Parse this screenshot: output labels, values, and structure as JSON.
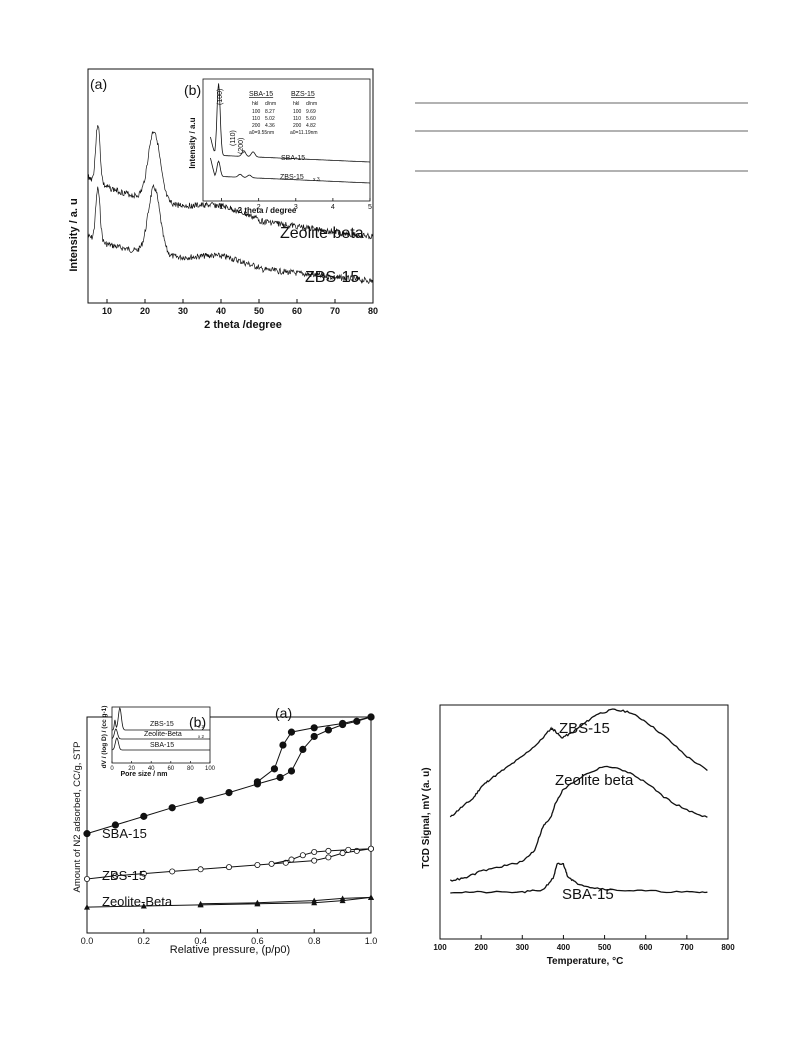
{
  "chart_data": [
    {
      "type": "line",
      "panel_label": "(a)",
      "xlabel": "2 theta /degree",
      "ylabel": "Intensity / a. u",
      "xlim": [
        5,
        80
      ],
      "xticks": [
        "10",
        "20",
        "30",
        "40",
        "50",
        "60",
        "70",
        "80"
      ],
      "series": [
        {
          "name": "Zeolite beta",
          "peaks": [
            {
              "x": 7.6,
              "height": 0.85
            },
            {
              "x": 22.4,
              "height": 1.0
            }
          ]
        },
        {
          "name": "ZBS-15",
          "peaks": [
            {
              "x": 7.6,
              "height": 0.75
            },
            {
              "x": 22.4,
              "height": 0.95
            }
          ]
        }
      ]
    },
    {
      "type": "line",
      "panel_label": "(b)",
      "xlabel": "2 theta / degree",
      "ylabel": "Intensity / a.u",
      "xlim": [
        0.5,
        5
      ],
      "xticks": [
        "1",
        "2",
        "3",
        "4",
        "5"
      ],
      "peak_labels": [
        "(100)",
        "(110)",
        "(200)"
      ],
      "series": [
        {
          "name": "SBA-15",
          "peaks": [
            {
              "x": 0.92,
              "height": 1.0
            },
            {
              "x": 1.6,
              "height": 0.08
            },
            {
              "x": 1.85,
              "height": 0.07
            }
          ]
        },
        {
          "name": "ZBS-15",
          "multiplier": "x 3",
          "peaks": [
            {
              "x": 0.92,
              "height": 0.4
            },
            {
              "x": 1.5,
              "height": 0.08
            },
            {
              "x": 1.75,
              "height": 0.07
            }
          ]
        }
      ],
      "table": {
        "columns": [
          {
            "title": "SBA-15",
            "header": [
              "hkl",
              "d/nm"
            ],
            "rows": [
              [
                "100",
                "8.27"
              ],
              [
                "110",
                "5.02"
              ],
              [
                "200",
                "4.36"
              ]
            ],
            "a0": "a0=9.55nm"
          },
          {
            "title": "BZS-15",
            "header": [
              "hkl",
              "d/nm"
            ],
            "rows": [
              [
                "100",
                "9.69"
              ],
              [
                "110",
                "5.60"
              ],
              [
                "200",
                "4.82"
              ]
            ],
            "a0": "a0=11.19nm"
          }
        ]
      }
    },
    {
      "type": "scatter",
      "panel_label": "(a)",
      "xlabel": "Relative pressure, (p/p0)",
      "ylabel": "Amount of N2 adsorbed, CC/g, STP",
      "xlim": [
        0.0,
        1.0
      ],
      "xticks": [
        "0.0",
        "0.2",
        "0.4",
        "0.6",
        "0.8",
        "1.0"
      ],
      "series": [
        {
          "name": "SBA-15",
          "marker": "filled-circle",
          "adsorption": [
            [
              0.0,
              0.46
            ],
            [
              0.1,
              0.5
            ],
            [
              0.2,
              0.54
            ],
            [
              0.3,
              0.58
            ],
            [
              0.4,
              0.615
            ],
            [
              0.5,
              0.65
            ],
            [
              0.6,
              0.69
            ],
            [
              0.68,
              0.72
            ],
            [
              0.72,
              0.75
            ],
            [
              0.76,
              0.85
            ],
            [
              0.8,
              0.91
            ],
            [
              0.85,
              0.94
            ],
            [
              0.9,
              0.965
            ],
            [
              0.95,
              0.98
            ],
            [
              1.0,
              1.0
            ]
          ],
          "desorption": [
            [
              1.0,
              1.0
            ],
            [
              0.9,
              0.97
            ],
            [
              0.8,
              0.95
            ],
            [
              0.72,
              0.93
            ],
            [
              0.69,
              0.87
            ],
            [
              0.66,
              0.76
            ],
            [
              0.6,
              0.7
            ]
          ]
        },
        {
          "name": "ZBS-15",
          "marker": "open-circle",
          "adsorption": [
            [
              0.0,
              0.25
            ],
            [
              0.1,
              0.265
            ],
            [
              0.2,
              0.275
            ],
            [
              0.3,
              0.285
            ],
            [
              0.4,
              0.295
            ],
            [
              0.5,
              0.305
            ],
            [
              0.6,
              0.315
            ],
            [
              0.7,
              0.325
            ],
            [
              0.8,
              0.335
            ],
            [
              0.85,
              0.35
            ],
            [
              0.9,
              0.37
            ],
            [
              0.95,
              0.38
            ],
            [
              1.0,
              0.39
            ]
          ],
          "desorption": [
            [
              1.0,
              0.39
            ],
            [
              0.92,
              0.385
            ],
            [
              0.85,
              0.38
            ],
            [
              0.8,
              0.375
            ],
            [
              0.76,
              0.36
            ],
            [
              0.72,
              0.34
            ],
            [
              0.65,
              0.32
            ]
          ]
        },
        {
          "name": "Zeolite-Beta",
          "marker": "filled-triangle",
          "adsorption": [
            [
              0.0,
              0.12
            ],
            [
              0.2,
              0.125
            ],
            [
              0.4,
              0.13
            ],
            [
              0.6,
              0.135
            ],
            [
              0.8,
              0.14
            ],
            [
              0.9,
              0.15
            ],
            [
              1.0,
              0.165
            ]
          ],
          "desorption": [
            [
              1.0,
              0.165
            ],
            [
              0.9,
              0.16
            ],
            [
              0.8,
              0.15
            ],
            [
              0.6,
              0.14
            ],
            [
              0.4,
              0.135
            ]
          ]
        }
      ]
    },
    {
      "type": "line",
      "panel_label": "(b)",
      "xlabel": "Pore size / nm",
      "ylabel": "dV / (log D) / (cc g-1)",
      "xlim": [
        0,
        100
      ],
      "xticks": [
        "0",
        "20",
        "40",
        "60",
        "80",
        "100"
      ],
      "series": [
        {
          "name": "ZBS-15",
          "multiplier": "x 2"
        },
        {
          "name": "Zeolite-Beta",
          "multiplier": "x 2"
        },
        {
          "name": "SBA-15"
        }
      ]
    },
    {
      "type": "line",
      "xlabel": "Temperature, °C",
      "ylabel": "TCD Signal, mV (a. u)",
      "xlim": [
        100,
        800
      ],
      "xticks": [
        "100",
        "200",
        "300",
        "400",
        "500",
        "600",
        "700",
        "800"
      ],
      "series": [
        {
          "name": "ZBS-15",
          "points": [
            [
              125,
              0.52
            ],
            [
              150,
              0.56
            ],
            [
              180,
              0.6
            ],
            [
              200,
              0.65
            ],
            [
              220,
              0.68
            ],
            [
              260,
              0.73
            ],
            [
              300,
              0.78
            ],
            [
              340,
              0.84
            ],
            [
              370,
              0.9
            ],
            [
              380,
              0.89
            ],
            [
              395,
              0.86
            ],
            [
              420,
              0.88
            ],
            [
              450,
              0.92
            ],
            [
              480,
              0.96
            ],
            [
              520,
              0.98
            ],
            [
              560,
              0.97
            ],
            [
              600,
              0.93
            ],
            [
              650,
              0.86
            ],
            [
              700,
              0.78
            ],
            [
              750,
              0.72
            ]
          ]
        },
        {
          "name": "Zeolite beta",
          "points": [
            [
              125,
              0.25
            ],
            [
              160,
              0.26
            ],
            [
              200,
              0.29
            ],
            [
              250,
              0.31
            ],
            [
              300,
              0.33
            ],
            [
              330,
              0.38
            ],
            [
              350,
              0.48
            ],
            [
              370,
              0.52
            ],
            [
              380,
              0.58
            ],
            [
              400,
              0.64
            ],
            [
              450,
              0.7
            ],
            [
              500,
              0.74
            ],
            [
              550,
              0.72
            ],
            [
              600,
              0.67
            ],
            [
              650,
              0.6
            ],
            [
              700,
              0.55
            ],
            [
              750,
              0.52
            ]
          ]
        },
        {
          "name": "SBA-15",
          "points": [
            [
              125,
              0.2
            ],
            [
              200,
              0.2
            ],
            [
              300,
              0.2
            ],
            [
              350,
              0.21
            ],
            [
              375,
              0.26
            ],
            [
              385,
              0.32
            ],
            [
              400,
              0.32
            ],
            [
              410,
              0.27
            ],
            [
              430,
              0.24
            ],
            [
              470,
              0.22
            ],
            [
              520,
              0.21
            ],
            [
              600,
              0.205
            ],
            [
              700,
              0.2
            ],
            [
              750,
              0.2
            ]
          ]
        }
      ]
    }
  ]
}
